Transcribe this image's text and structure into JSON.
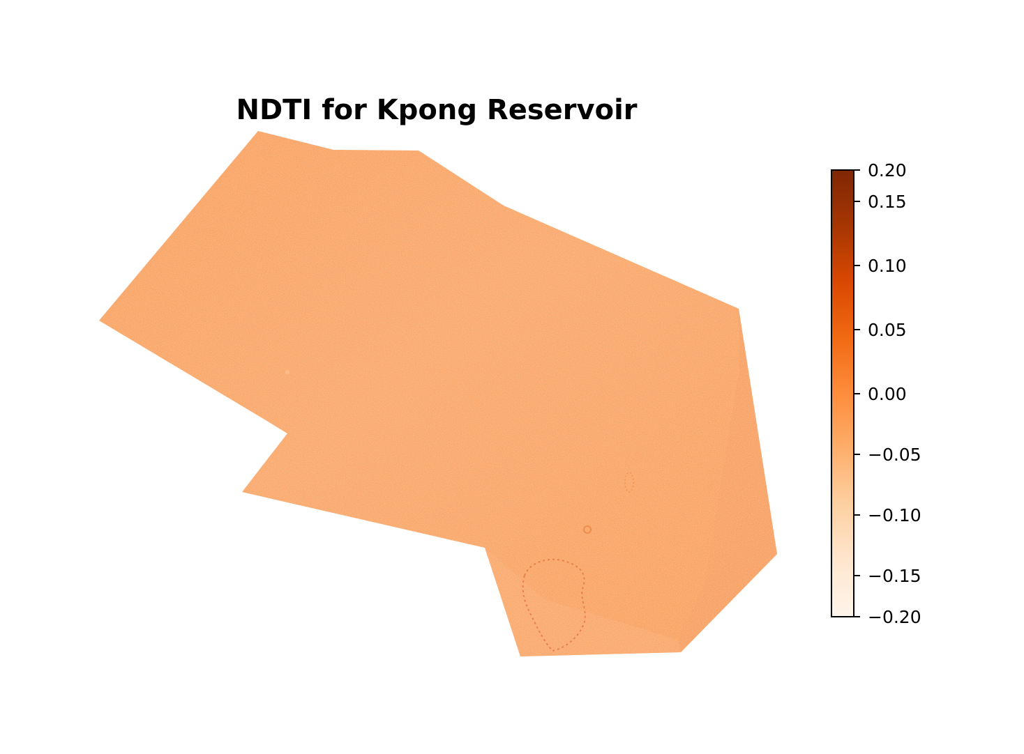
{
  "title": "NDTI for Kpong Reservoir",
  "colormap": {
    "name": "Oranges",
    "stops": [
      "#fff5eb",
      "#fee6ce",
      "#fdd0a2",
      "#fdae6b",
      "#fd8d3c",
      "#f16913",
      "#d94801",
      "#a63603",
      "#7f2704"
    ]
  },
  "colorbar": {
    "min": -0.2,
    "max": 0.2,
    "ticks": [
      {
        "value": 0.2,
        "label": "0.20"
      },
      {
        "value": 0.15,
        "label": "0.15"
      },
      {
        "value": 0.1,
        "label": "0.10"
      },
      {
        "value": 0.05,
        "label": "0.05"
      },
      {
        "value": 0.0,
        "label": "0.00"
      },
      {
        "value": -0.05,
        "label": "−0.05"
      },
      {
        "value": -0.1,
        "label": "−0.10"
      },
      {
        "value": -0.15,
        "label": "−0.15"
      },
      {
        "value": -0.2,
        "label": "−0.20"
      }
    ]
  },
  "raster": {
    "fill_color": "#f9a567",
    "dominant_value_range": [
      -0.05,
      -0.02
    ]
  }
}
